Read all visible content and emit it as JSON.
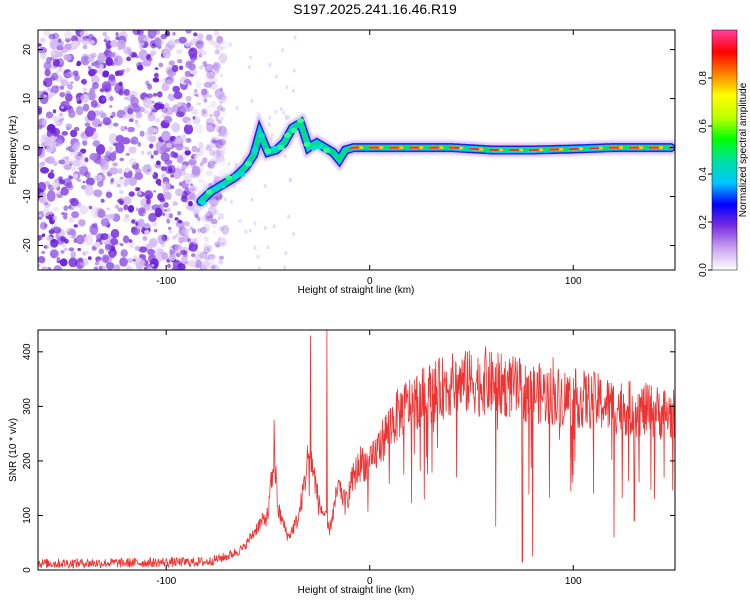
{
  "figure_title": "S197.2025.241.16.46.R19",
  "chart_data": [
    {
      "type": "heatmap",
      "name": "spectrogram",
      "xlabel": "Height of straight line (km)",
      "ylabel": "Frequency (Hz)",
      "xlim": [
        -163,
        150
      ],
      "ylim": [
        -25,
        24
      ],
      "xticks": [
        -100,
        0,
        100
      ],
      "yticks": [
        -20,
        -10,
        0,
        10,
        20
      ],
      "noise_region_x": [
        -163,
        -75
      ],
      "track": {
        "x": [
          -83,
          -78,
          -72,
          -66,
          -61,
          -57,
          -54,
          -50,
          -46,
          -42,
          -38,
          -34,
          -30,
          -26,
          -22,
          -18,
          -15,
          -12,
          -8,
          -3,
          0,
          20,
          40,
          60,
          80,
          100,
          120,
          148
        ],
        "freq": [
          -11,
          -9,
          -7.5,
          -6,
          -4,
          -1.5,
          3,
          -1,
          -0.5,
          1,
          4,
          5,
          0,
          1,
          0,
          -1,
          -2.5,
          -0.5,
          0,
          0,
          0,
          0,
          0,
          -0.5,
          -0.5,
          -0.3,
          0,
          0
        ]
      },
      "colorbar": {
        "label": "Normalized spectral amplitude",
        "range": [
          0,
          1
        ],
        "ticks": [
          0.0,
          0.2,
          0.4,
          0.6,
          0.8
        ],
        "colors": [
          "#ffffff",
          "#c9a3f0",
          "#7b2fe0",
          "#0000ff",
          "#00c8ff",
          "#00e0a0",
          "#00ff00",
          "#c0ff00",
          "#ffff00",
          "#ff8000",
          "#ff0000",
          "#ff40a0"
        ]
      }
    },
    {
      "type": "line",
      "name": "snr",
      "xlabel": "Height of straight line (km)",
      "ylabel": "SNR (10 * v/v)",
      "xlim": [
        -163,
        150
      ],
      "ylim": [
        0,
        440
      ],
      "xticks": [
        -100,
        0,
        100
      ],
      "yticks": [
        0,
        100,
        200,
        300,
        400
      ],
      "series": [
        {
          "name": "SNR",
          "color": "#ee3333",
          "envelope_x": [
            -163,
            -120,
            -80,
            -70,
            -62,
            -55,
            -50,
            -47,
            -45,
            -40,
            -35,
            -32,
            -30,
            -28,
            -25,
            -22,
            -20,
            -18,
            -15,
            -12,
            -8,
            -4,
            0,
            5,
            10,
            15,
            20,
            25,
            30,
            40,
            50,
            60,
            70,
            80,
            90,
            100,
            110,
            120,
            130,
            140,
            150
          ],
          "envelope_y": [
            12,
            13,
            15,
            25,
            40,
            80,
            100,
            210,
            110,
            60,
            95,
            160,
            220,
            190,
            120,
            100,
            70,
            105,
            160,
            120,
            170,
            200,
            190,
            230,
            265,
            290,
            305,
            315,
            325,
            340,
            345,
            342,
            335,
            325,
            320,
            315,
            310,
            300,
            295,
            290,
            285
          ],
          "spikes": [
            {
              "x": -47,
              "y": 275
            },
            {
              "x": -29,
              "y": 430
            },
            {
              "x": -21,
              "y": 440
            },
            {
              "x": 48,
              "y": 400
            },
            {
              "x": 57,
              "y": 410
            },
            {
              "x": 62,
              "y": 80
            },
            {
              "x": 75,
              "y": 15
            },
            {
              "x": 80,
              "y": 25
            },
            {
              "x": 90,
              "y": 390
            },
            {
              "x": 110,
              "y": 140
            },
            {
              "x": 120,
              "y": 60
            },
            {
              "x": 130,
              "y": 90
            },
            {
              "x": 140,
              "y": 130
            }
          ]
        }
      ]
    }
  ]
}
